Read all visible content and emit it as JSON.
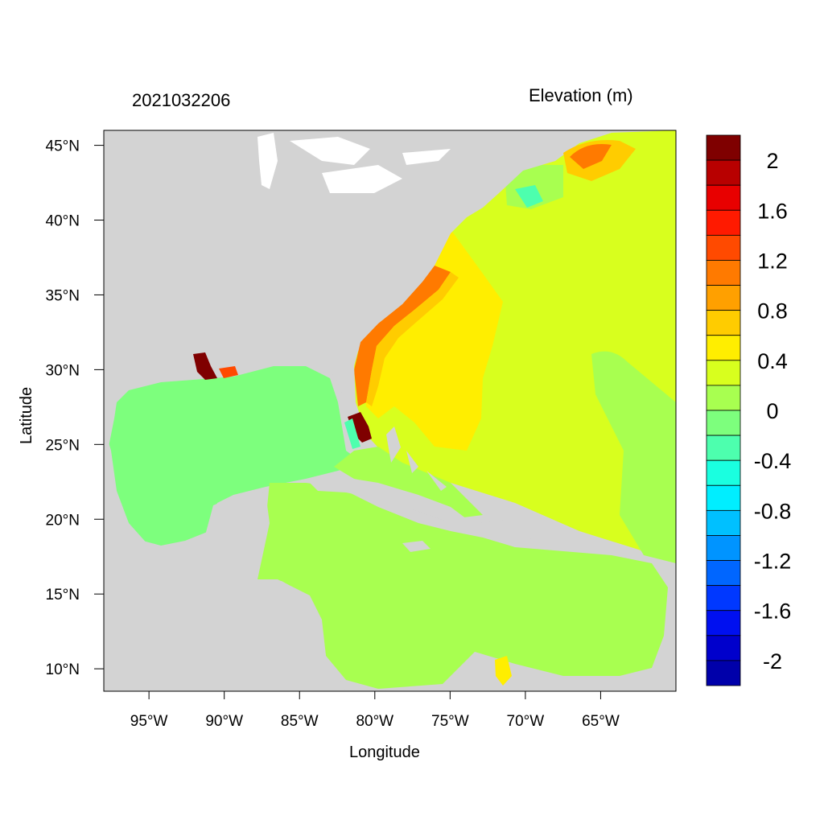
{
  "map": {
    "timestamp": "2021032206",
    "variable": "Elevation (m)",
    "xlabel": "Longitude",
    "ylabel": "Latitude",
    "lon_range": [
      -98,
      -60
    ],
    "lat_range": [
      8.5,
      46
    ],
    "lon_ticks": [
      {
        "value": -95,
        "label": "95°W"
      },
      {
        "value": -90,
        "label": "90°W"
      },
      {
        "value": -85,
        "label": "85°W"
      },
      {
        "value": -80,
        "label": "80°W"
      },
      {
        "value": -75,
        "label": "75°W"
      },
      {
        "value": -70,
        "label": "70°W"
      },
      {
        "value": -65,
        "label": "65°W"
      }
    ],
    "lat_ticks": [
      {
        "value": 45,
        "label": "45°N"
      },
      {
        "value": 40,
        "label": "40°N"
      },
      {
        "value": 35,
        "label": "35°N"
      },
      {
        "value": 30,
        "label": "30°N"
      },
      {
        "value": 25,
        "label": "25°N"
      },
      {
        "value": 20,
        "label": "20°N"
      },
      {
        "value": 15,
        "label": "15°N"
      },
      {
        "value": 10,
        "label": "10°N"
      }
    ],
    "land_color": "#d3d3d3"
  },
  "colorbar": {
    "bins": [
      {
        "color": "#7f0000"
      },
      {
        "color": "#b80000"
      },
      {
        "color": "#e80000"
      },
      {
        "color": "#ff1a00"
      },
      {
        "color": "#ff4a00"
      },
      {
        "color": "#ff7a00"
      },
      {
        "color": "#ffa000"
      },
      {
        "color": "#ffcc00"
      },
      {
        "color": "#ffee00"
      },
      {
        "color": "#d8ff1e"
      },
      {
        "color": "#a8ff50"
      },
      {
        "color": "#7dff7d"
      },
      {
        "color": "#4dffae"
      },
      {
        "color": "#1affe0"
      },
      {
        "color": "#00eeff"
      },
      {
        "color": "#00c0ff"
      },
      {
        "color": "#0094ff"
      },
      {
        "color": "#0066ff"
      },
      {
        "color": "#0038ff"
      },
      {
        "color": "#0010f0"
      },
      {
        "color": "#0000cc"
      },
      {
        "color": "#0000aa"
      }
    ],
    "labels": [
      "2",
      "1.6",
      "1.2",
      "0.8",
      "0.4",
      "0",
      "-0.4",
      "-0.8",
      "-1.2",
      "-1.6",
      "-2"
    ]
  }
}
